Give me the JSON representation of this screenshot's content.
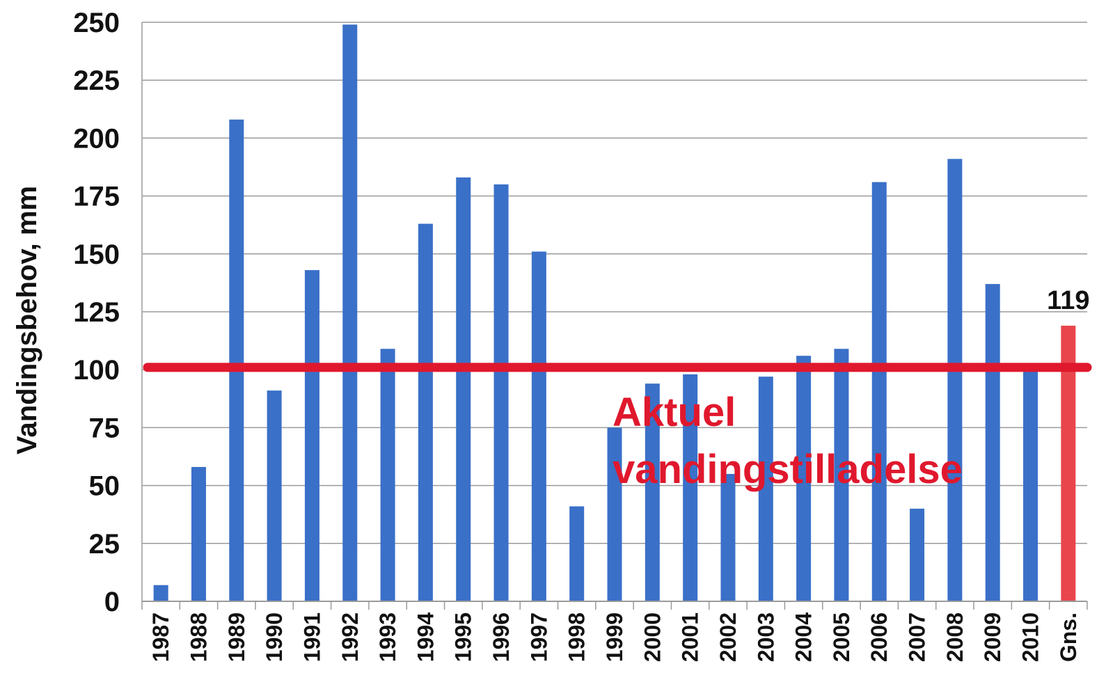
{
  "chart_data": {
    "type": "bar",
    "title": "",
    "xlabel": "",
    "ylabel": "Vandingsbehov, mm",
    "ylim": [
      0,
      250
    ],
    "yticks": [
      0,
      25,
      50,
      75,
      100,
      125,
      150,
      175,
      200,
      225,
      250
    ],
    "grid": true,
    "categories": [
      "1987",
      "1988",
      "1989",
      "1990",
      "1991",
      "1992",
      "1993",
      "1994",
      "1995",
      "1996",
      "1997",
      "1998",
      "1999",
      "2000",
      "2001",
      "2002",
      "2003",
      "2004",
      "2005",
      "2006",
      "2007",
      "2008",
      "2009",
      "2010",
      "Gns."
    ],
    "values": [
      7,
      58,
      208,
      91,
      143,
      249,
      109,
      163,
      183,
      180,
      151,
      41,
      75,
      94,
      98,
      55,
      97,
      106,
      109,
      181,
      40,
      191,
      137,
      100,
      119
    ],
    "colors": {
      "bar": "#3a70c8",
      "average_bar": "#e8464c",
      "reference_line": "#e0182d",
      "annotation_text": "#e0182d"
    },
    "average": {
      "category": "Gns.",
      "value": 119,
      "label": "119"
    },
    "reference_line": {
      "value": 101
    },
    "annotation": {
      "lines": [
        "Aktuel",
        "vandingstilladelse"
      ]
    }
  }
}
